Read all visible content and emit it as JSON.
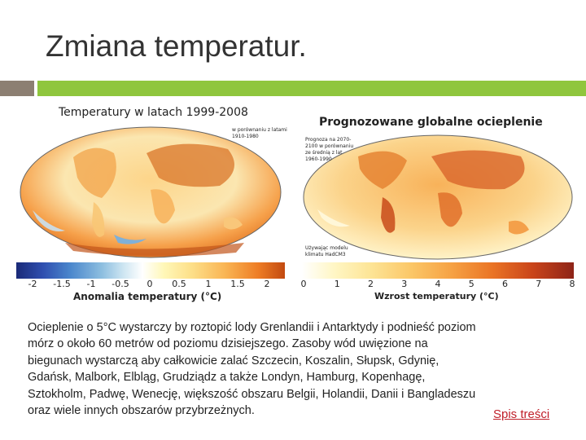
{
  "slide": {
    "title": "Zmiana temperatur.",
    "colors": {
      "accent_gray": "#8c7f72",
      "accent_green": "#8fc63d",
      "link": "#c0202a"
    }
  },
  "figure": {
    "left_map": {
      "title": "Temperatury w latach 1999-2008",
      "note": "w porównaniu z latami 1910-1980",
      "colorbar_ticks": [
        "-2",
        "-1.5",
        "-1",
        "-0.5",
        "0",
        "0.5",
        "1",
        "1.5",
        "2"
      ],
      "axis_label": "Anomalia temperatury (°C)"
    },
    "right_map": {
      "title": "Prognozowane globalne ocieplenie",
      "note_top": "Prognoza na 2070-2100 w porównaniu ze średnią z lat 1960-1990",
      "note_bottom": "Używając modelu klimatu HadCM3",
      "colorbar_ticks": [
        "0",
        "1",
        "2",
        "3",
        "4",
        "5",
        "6",
        "7",
        "8"
      ],
      "axis_label": "Wzrost temperatury (°C)"
    }
  },
  "body": {
    "lines": [
      "Ocieplenie o 5°C wystarczy by roztopić lody Grenlandii i Antarktydy i podnieść poziom",
      "mórz o około 60 metrów od poziomu dzisiejszego. Zasoby wód uwięzione na",
      "biegunach wystarczą aby całkowicie zalać Szczecin, Koszalin, Słupsk, Gdynię,",
      "Gdańsk, Malbork, Elbląg, Grudziądz a także Londyn, Hamburg, Kopenhagę,",
      "Sztokholm, Padwę, Wenecję, większość obszaru Belgii, Holandii, Danii i Bangladeszu",
      "oraz wiele innych obszarów przybrzeżnych."
    ]
  },
  "nav": {
    "toc_label": "Spis treści"
  }
}
